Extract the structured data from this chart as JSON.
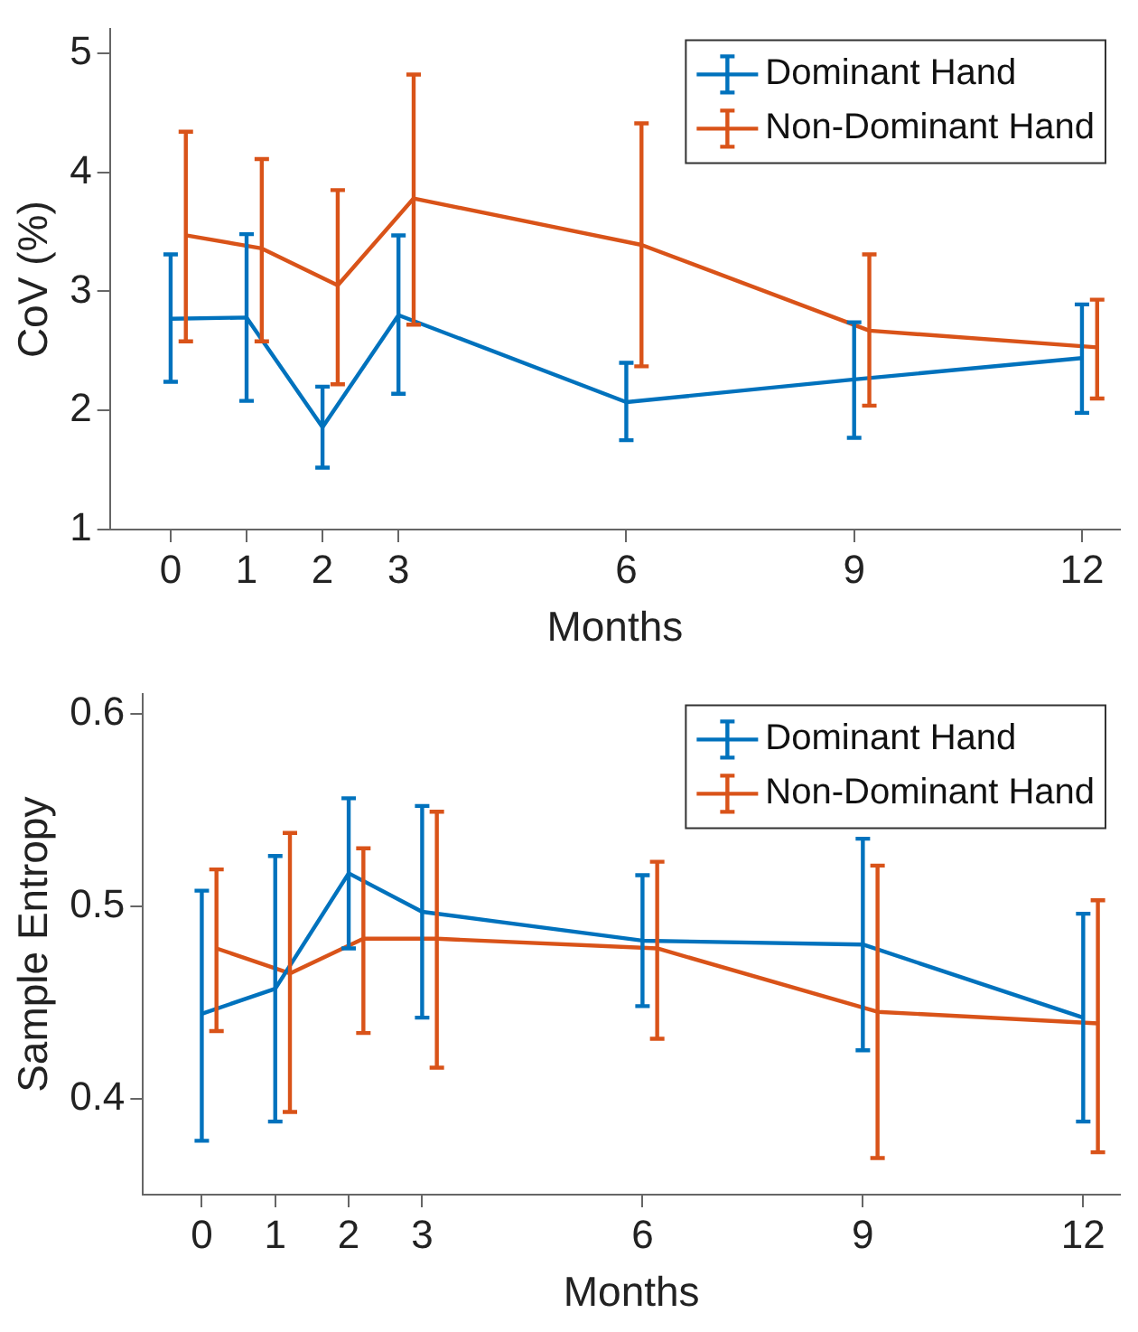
{
  "chart_data": [
    {
      "type": "line",
      "xlabel": "Months",
      "ylabel": "CoV (%)",
      "xlim": [
        -0.8,
        12.5
      ],
      "xticks": [
        0,
        1,
        2,
        3,
        6,
        9,
        12
      ],
      "ylim": [
        1,
        5.2
      ],
      "yticks": [
        1,
        2,
        3,
        4,
        5
      ],
      "grid": false,
      "legend": "top right",
      "marker": "none",
      "line_style": "solid",
      "series": [
        {
          "name": "Dominant Hand",
          "color": "#0072bd",
          "x": [
            0,
            1,
            2,
            3,
            6,
            9,
            12
          ],
          "values": [
            2.77,
            2.78,
            1.86,
            2.8,
            2.07,
            2.26,
            2.44
          ],
          "errors": [
            [
              2.24,
              3.31
            ],
            [
              2.08,
              3.48
            ],
            [
              1.52,
              2.2
            ],
            [
              2.14,
              3.47
            ],
            [
              1.75,
              2.4
            ],
            [
              1.77,
              2.74
            ],
            [
              1.98,
              2.89
            ]
          ]
        },
        {
          "name": "Non-Dominant Hand",
          "color": "#d95319",
          "x": [
            0.2,
            1.2,
            2.2,
            3.2,
            6.2,
            9.2,
            12.2
          ],
          "values": [
            3.47,
            3.36,
            3.05,
            3.78,
            3.39,
            2.67,
            2.53
          ],
          "errors": [
            [
              2.58,
              4.34
            ],
            [
              2.58,
              4.11
            ],
            [
              2.22,
              3.85
            ],
            [
              2.72,
              4.82
            ],
            [
              2.37,
              4.41
            ],
            [
              2.04,
              3.31
            ],
            [
              2.1,
              2.93
            ]
          ]
        }
      ]
    },
    {
      "type": "line",
      "xlabel": "Months",
      "ylabel": "Sample Entropy",
      "xlim": [
        -0.8,
        12.5
      ],
      "xticks": [
        0,
        1,
        2,
        3,
        6,
        9,
        12
      ],
      "ylim": [
        0.35,
        0.61
      ],
      "yticks": [
        0.4,
        0.5,
        0.6
      ],
      "grid": false,
      "legend": "top right",
      "marker": "none",
      "line_style": "solid",
      "series": [
        {
          "name": "Dominant Hand",
          "color": "#0072bd",
          "x": [
            0,
            1,
            2,
            3,
            6,
            9,
            12
          ],
          "values": [
            0.444,
            0.457,
            0.517,
            0.497,
            0.482,
            0.48,
            0.442
          ],
          "errors": [
            [
              0.378,
              0.508
            ],
            [
              0.388,
              0.526
            ],
            [
              0.478,
              0.556
            ],
            [
              0.442,
              0.552
            ],
            [
              0.448,
              0.516
            ],
            [
              0.425,
              0.535
            ],
            [
              0.388,
              0.496
            ]
          ]
        },
        {
          "name": "Non-Dominant Hand",
          "color": "#d95319",
          "x": [
            0.2,
            1.2,
            2.2,
            3.2,
            6.2,
            9.2,
            12.2
          ],
          "values": [
            0.478,
            0.465,
            0.483,
            0.483,
            0.478,
            0.445,
            0.439
          ],
          "errors": [
            [
              0.435,
              0.519
            ],
            [
              0.393,
              0.538
            ],
            [
              0.434,
              0.53
            ],
            [
              0.416,
              0.549
            ],
            [
              0.431,
              0.523
            ],
            [
              0.369,
              0.521
            ],
            [
              0.372,
              0.503
            ]
          ]
        }
      ]
    }
  ]
}
